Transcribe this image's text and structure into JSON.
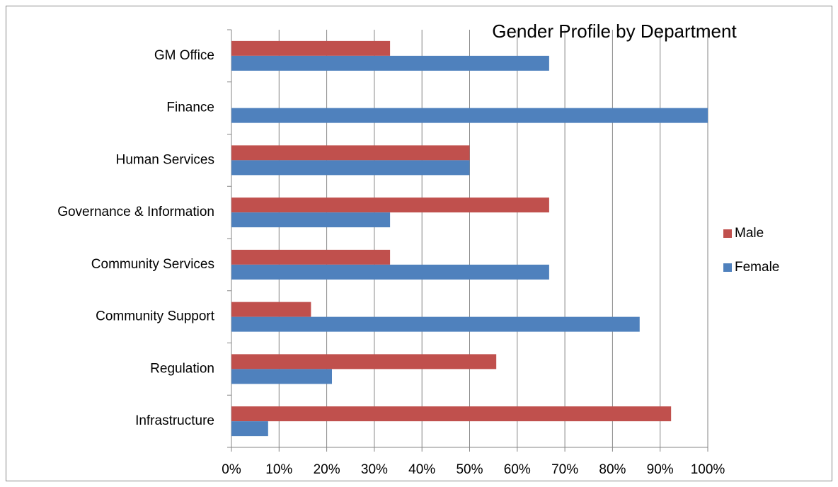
{
  "chart_data": {
    "type": "bar",
    "orientation": "horizontal",
    "title": "Gender Profile by Department",
    "categories": [
      "GM Office",
      "Finance",
      "Human Services",
      "Governance & Information",
      "Community Services",
      "Community Support",
      "Regulation",
      "Infrastructure"
    ],
    "series": [
      {
        "name": "Male",
        "color": "#c0504d",
        "values": [
          33.3,
          0,
          50,
          66.7,
          33.3,
          16.7,
          55.6,
          92.3
        ]
      },
      {
        "name": "Female",
        "color": "#4f81bd",
        "values": [
          66.7,
          100,
          50,
          33.3,
          66.7,
          85.7,
          21.1,
          7.7
        ]
      }
    ],
    "xlim": [
      0,
      100
    ],
    "xticks": [
      {
        "value": 0,
        "label": "0%"
      },
      {
        "value": 10,
        "label": "10%"
      },
      {
        "value": 20,
        "label": "20%"
      },
      {
        "value": 30,
        "label": "30%"
      },
      {
        "value": 40,
        "label": "40%"
      },
      {
        "value": 50,
        "label": "50%"
      },
      {
        "value": 60,
        "label": "60%"
      },
      {
        "value": 70,
        "label": "70%"
      },
      {
        "value": 80,
        "label": "80%"
      },
      {
        "value": 90,
        "label": "90%"
      },
      {
        "value": 100,
        "label": "100%"
      }
    ],
    "grid": true,
    "legend": "right"
  }
}
